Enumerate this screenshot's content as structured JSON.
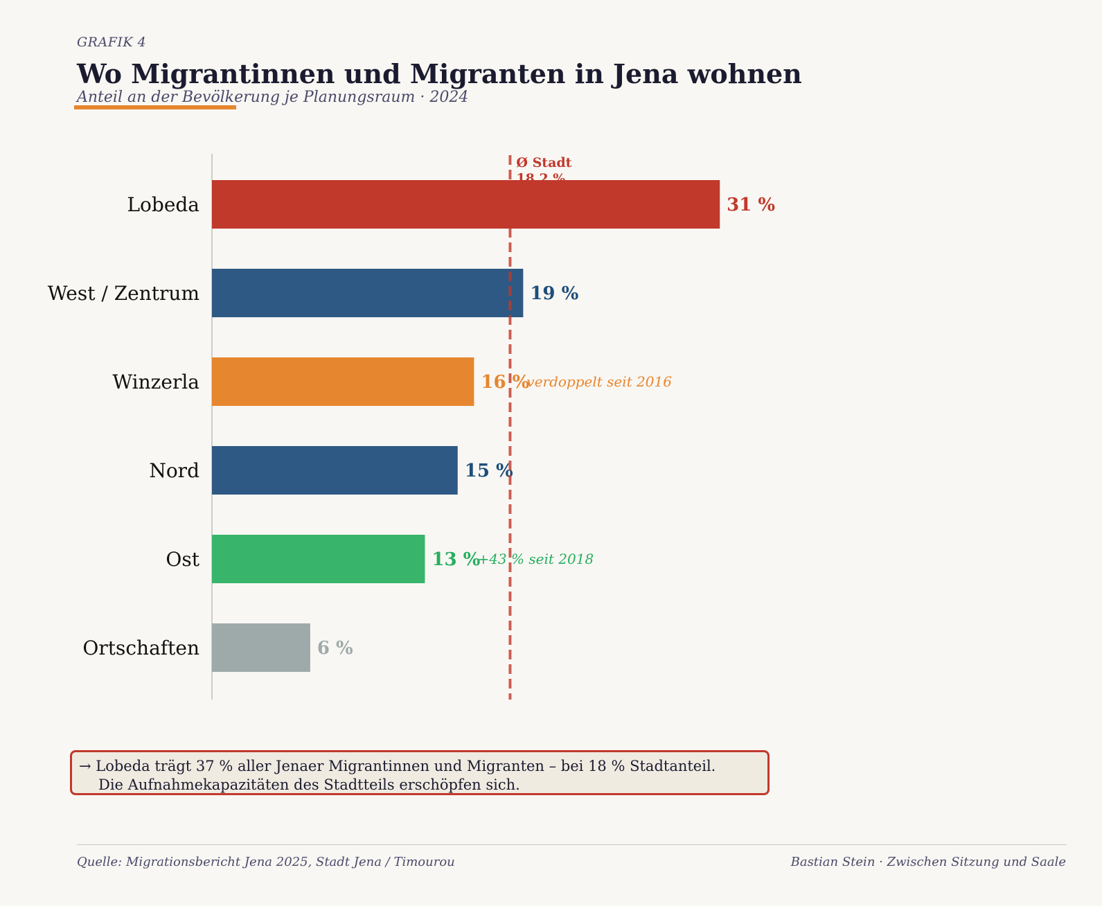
{
  "header": {
    "kicker": "GRAFIK 4",
    "title": "Wo Migrantinnen und Migranten in Jena wohnen",
    "subtitle": "Anteil an der Bevölkerung je Planungsraum · 2024"
  },
  "chart_data": {
    "type": "bar",
    "orientation": "horizontal",
    "categories": [
      "Lobeda",
      "West / Zentrum",
      "Winzerla",
      "Nord",
      "Ost",
      "Ortschaften"
    ],
    "values": [
      31,
      19,
      16,
      15,
      13,
      6
    ],
    "value_labels": [
      "31 %",
      "19 %",
      "16 %",
      "15 %",
      "13 %",
      "6 %"
    ],
    "bar_colors": [
      "#c0392b",
      "#2e5984",
      "#e6862f",
      "#2e5984",
      "#38b56b",
      "#9eaaaa"
    ],
    "label_colors": [
      "#c0392b",
      "#1f4e7a",
      "#e6862f",
      "#1f4e7a",
      "#27ae60",
      "#9eaaaa"
    ],
    "annotations": [
      {
        "category": "Winzerla",
        "text": "verdoppelt seit 2016",
        "color": "#e6862f"
      },
      {
        "category": "Ost",
        "text": "+43 % seit 2018",
        "color": "#27ae60"
      }
    ],
    "reference_line": {
      "value": 18.2,
      "label_line1": "Ø Stadt",
      "label_line2": "18,2 %",
      "color": "#c0392b"
    },
    "xlim": [
      0,
      49
    ]
  },
  "callout": {
    "line1": "→  Lobeda trägt 37 % aller Jenaer Migrantinnen und Migranten – bei 18 % Stadtanteil.",
    "line2": "Die Aufnahmekapazitäten des Stadtteils erschöpfen sich."
  },
  "footer": {
    "source": "Quelle: Migrationsbericht Jena 2025, Stadt Jena / Timourou",
    "credit": "Bastian Stein  ·  Zwischen Sitzung und Saale"
  }
}
